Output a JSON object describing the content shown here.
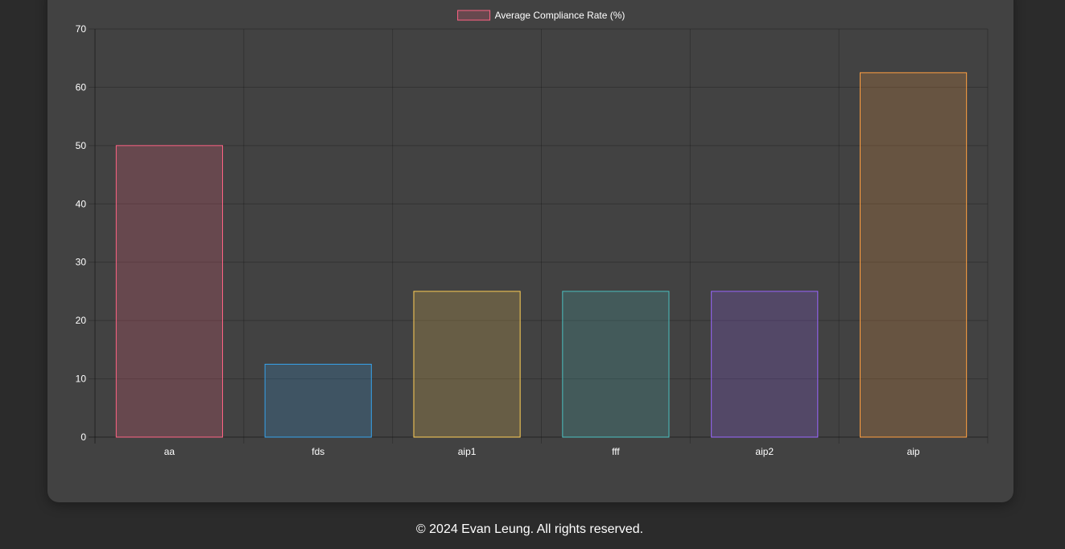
{
  "chart_data": {
    "type": "bar",
    "categories": [
      "aa",
      "fds",
      "aip1",
      "fff",
      "aip2",
      "aip"
    ],
    "series": [
      {
        "name": "Average Compliance Rate (%)",
        "values": [
          50,
          12.5,
          25,
          25,
          25,
          62.5
        ]
      }
    ],
    "bar_colors": [
      "#ff6384",
      "#36a2eb",
      "#ffce56",
      "#4bc0c0",
      "#9966ff",
      "#ff9f40"
    ],
    "bar_fill_opacity": 0.2,
    "legend_swatch_color": "#ff6384",
    "ylim": [
      0,
      70
    ],
    "yticks": [
      0,
      10,
      20,
      30,
      40,
      50,
      60,
      70
    ],
    "grid": true,
    "legend_position": "top-center",
    "xlabel": "",
    "ylabel": ""
  },
  "footer": {
    "text": "© 2024 Evan Leung. All rights reserved."
  }
}
